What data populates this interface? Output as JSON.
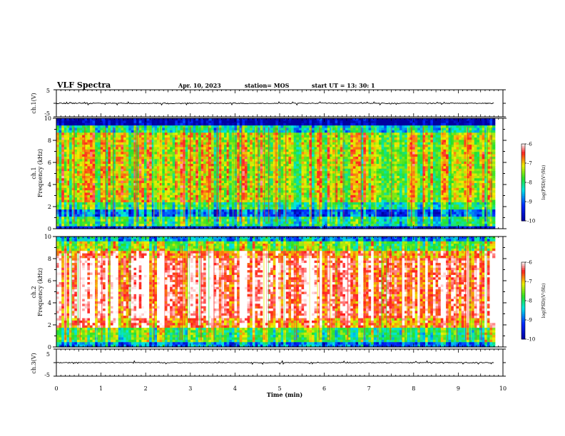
{
  "header": {
    "title": "VLF Spectra",
    "date": "Apr. 10, 2023",
    "station": "station= MOS",
    "start": "start  UT  =   13: 30: 1"
  },
  "chart_data": [
    {
      "type": "line",
      "ylabel": "ch.1(V)",
      "ylim": [
        -5,
        5
      ],
      "yticks": [
        "5",
        "-5"
      ],
      "series": [
        {
          "x": [
            0,
            9.8
          ],
          "y": [
            0,
            0
          ]
        }
      ]
    },
    {
      "type": "heatmap",
      "ylabel_line1": "ch.1",
      "ylabel_line2": "Frequency (kHz)",
      "ylim": [
        0,
        10
      ],
      "yticks": [
        "0",
        "2",
        "4",
        "6",
        "8",
        "10"
      ],
      "colorbar": {
        "label": "log(PSD)(V²/Hz)",
        "ticks": [
          "-6",
          "-7",
          "-8",
          "-9",
          "-10"
        ],
        "range": [
          -10,
          -6
        ]
      }
    },
    {
      "type": "heatmap",
      "ylabel_line1": "ch.2",
      "ylabel_line2": "Frequency (kHz)",
      "ylim": [
        0,
        10
      ],
      "yticks": [
        "0",
        "2",
        "4",
        "6",
        "8",
        "10"
      ],
      "colorbar": {
        "label": "log(PSD)(V²/Hz)",
        "ticks": [
          "-6",
          "-7",
          "-8",
          "-9",
          "-10"
        ],
        "range": [
          -10,
          -6
        ]
      }
    },
    {
      "type": "line",
      "ylabel": "ch.3(V)",
      "ylim": [
        -5,
        5
      ],
      "yticks": [
        "5",
        "-5"
      ],
      "series": [
        {
          "x": [
            0,
            9.8
          ],
          "y": [
            0,
            0
          ]
        }
      ]
    }
  ],
  "xaxis": {
    "label": "Time (min)",
    "ticks": [
      "0",
      "1",
      "2",
      "3",
      "4",
      "5",
      "6",
      "7",
      "8",
      "9",
      "10"
    ],
    "xlim": [
      0,
      10
    ]
  },
  "colors": {
    "ch1_top_band": "#000000",
    "ch2_core": "#ffffff",
    "red": "#ff2020",
    "yellow": "#f0f000",
    "green": "#20e020",
    "cyan": "#00e0e0",
    "blue": "#0000b0"
  }
}
